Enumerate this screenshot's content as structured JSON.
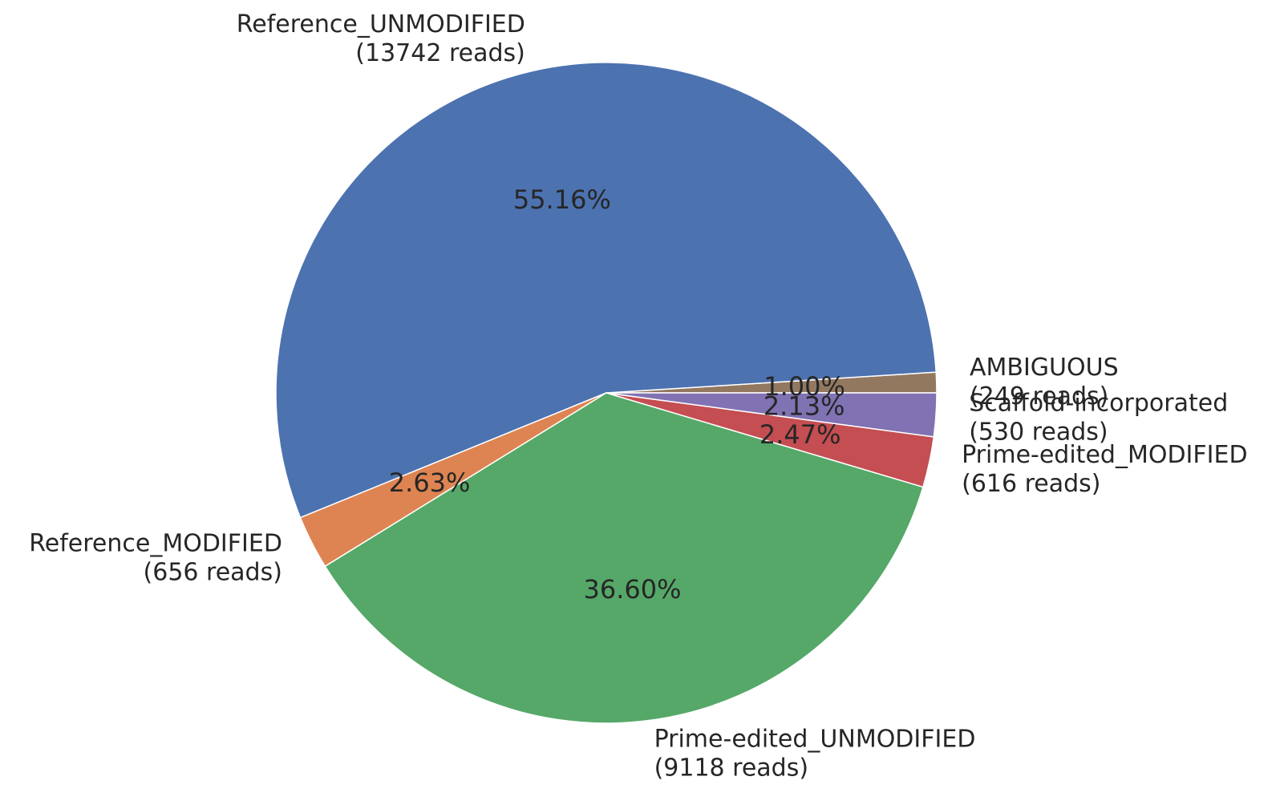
{
  "chart_data": {
    "type": "pie",
    "start_angle_deg": 0,
    "direction": "counterclockwise",
    "slices": [
      {
        "label": "AMBIGUOUS",
        "reads_label": "(249 reads)",
        "reads": 249,
        "percent": 1.0,
        "pct_text": "1.00%",
        "color": "#937860"
      },
      {
        "label": "Reference_UNMODIFIED",
        "reads_label": "(13742 reads)",
        "reads": 13742,
        "percent": 55.16,
        "pct_text": "55.16%",
        "color": "#4c72b0"
      },
      {
        "label": "Reference_MODIFIED",
        "reads_label": "(656 reads)",
        "reads": 656,
        "percent": 2.63,
        "pct_text": "2.63%",
        "color": "#dd8452"
      },
      {
        "label": "Prime-edited_UNMODIFIED",
        "reads_label": "(9118 reads)",
        "reads": 9118,
        "percent": 36.6,
        "pct_text": "36.60%",
        "color": "#55a868"
      },
      {
        "label": "Prime-edited_MODIFIED",
        "reads_label": "(616 reads)",
        "reads": 616,
        "percent": 2.47,
        "pct_text": "2.47%",
        "color": "#c44e52"
      },
      {
        "label": "Scaffold-incorporated",
        "reads_label": "(530 reads)",
        "reads": 530,
        "percent": 2.13,
        "pct_text": "2.13%",
        "color": "#8172b3"
      }
    ]
  }
}
